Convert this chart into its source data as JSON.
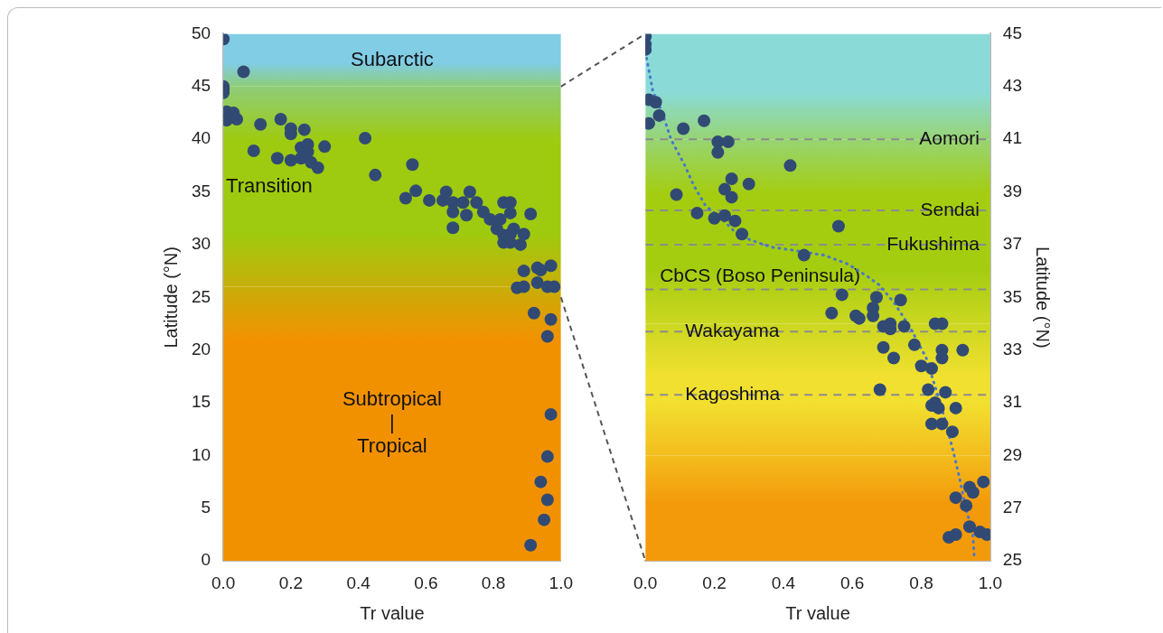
{
  "chart_data": [
    {
      "type": "scatter",
      "xlabel": "Tr value",
      "ylabel": "Latitude (°N)",
      "legend": false,
      "xlim": [
        0,
        1
      ],
      "ylim": [
        0,
        50
      ],
      "xticks": [
        {
          "value": 0,
          "label": "0.0"
        },
        {
          "value": 0.2,
          "label": "0.2"
        },
        {
          "value": 0.4,
          "label": "0.4"
        },
        {
          "value": 0.6,
          "label": "0.6"
        },
        {
          "value": 0.8,
          "label": "0.8"
        },
        {
          "value": 1,
          "label": "1.0"
        }
      ],
      "yticks": [
        0,
        5,
        10,
        15,
        20,
        25,
        30,
        35,
        40,
        45,
        50
      ],
      "bands": [
        {
          "axis": "y",
          "from": 45,
          "to": 50,
          "label": "Subarctic",
          "color": "#80cde5"
        },
        {
          "axis": "y",
          "from": 26,
          "to": 45,
          "label": "Transition",
          "color": "#9ecb0f"
        },
        {
          "axis": "y",
          "from": 0,
          "to": 26,
          "label": "Subtropical\n|\nTropical",
          "color": "#f29100"
        }
      ],
      "series": [
        {
          "color": "#314a74",
          "marker": "circle",
          "x": [
            0,
            0.06,
            0,
            0,
            0,
            0.01,
            0.03,
            0.01,
            0.04,
            0.11,
            0.17,
            0.2,
            0.2,
            0.24,
            0.42,
            0.09,
            0.16,
            0.2,
            0.23,
            0.25,
            0.25,
            0.23,
            0.26,
            0.28,
            0.3,
            0.45,
            0.56,
            0.57,
            0.54,
            0.61,
            0.66,
            0.65,
            0.68,
            0.71,
            0.68,
            0.72,
            0.73,
            0.75,
            0.77,
            0.79,
            0.82,
            0.68,
            0.83,
            0.85,
            0.85,
            0.91,
            0.81,
            0.86,
            0.83,
            0.85,
            0.83,
            0.85,
            0.88,
            0.89,
            0.89,
            0.93,
            0.94,
            0.97,
            0.93,
            0.96,
            0.98,
            0.87,
            0.89,
            0.92,
            0.97,
            0.96,
            0.97,
            0.96,
            0.94,
            0.96,
            0.95,
            0.91
          ],
          "values": [
            49.5,
            46.4,
            45.0,
            44.7,
            44.4,
            42.6,
            42.5,
            41.8,
            41.9,
            41.4,
            41.9,
            41.0,
            40.5,
            40.9,
            40.1,
            38.9,
            38.2,
            38.0,
            39.2,
            39.5,
            38.8,
            38.2,
            37.8,
            37.3,
            39.3,
            36.6,
            37.6,
            35.1,
            34.4,
            34.2,
            35.0,
            34.2,
            34.0,
            34.0,
            33.1,
            32.8,
            35.0,
            34.0,
            33.1,
            32.4,
            32.4,
            31.6,
            34.0,
            34.0,
            33.0,
            32.9,
            31.5,
            31.5,
            30.9,
            31.0,
            30.2,
            30.2,
            30.0,
            31.0,
            27.5,
            27.8,
            27.6,
            28.0,
            26.4,
            26.0,
            26.0,
            25.9,
            26.0,
            23.5,
            22.9,
            21.3,
            13.9,
            9.9,
            7.5,
            5.8,
            3.9,
            1.5
          ]
        }
      ]
    },
    {
      "type": "scatter",
      "xlabel": "Tr value",
      "y2label": "Latitude (°N)",
      "legend": false,
      "xlim": [
        0,
        1
      ],
      "y2lim": [
        25,
        45
      ],
      "xticks": [
        {
          "value": 0,
          "label": "0.0"
        },
        {
          "value": 0.2,
          "label": "0.2"
        },
        {
          "value": 0.4,
          "label": "0.4"
        },
        {
          "value": 0.6,
          "label": "0.6"
        },
        {
          "value": 0.8,
          "label": "0.8"
        },
        {
          "value": 1,
          "label": "1.0"
        }
      ],
      "y2ticks": [
        25,
        27,
        29,
        31,
        33,
        35,
        37,
        39,
        41,
        43,
        45
      ],
      "bands": [
        {
          "axis": "y2",
          "from": 41,
          "to": 45,
          "color": "#8adbd8"
        },
        {
          "axis": "y2",
          "from": 34,
          "to": 41,
          "color": "#a4cd10"
        },
        {
          "axis": "y2",
          "from": 29,
          "to": 34,
          "color": "#f2e030"
        },
        {
          "axis": "y2",
          "from": 25,
          "to": 29,
          "color": "#f39a0a"
        }
      ],
      "ref_lines": [
        {
          "axis": "y2",
          "value": 41.0,
          "label": "Aomori",
          "color": "#8c8c8c",
          "line_style": "dashed"
        },
        {
          "axis": "y2",
          "value": 38.3,
          "label": "Sendai",
          "color": "#8c8c8c",
          "line_style": "dashed"
        },
        {
          "axis": "y2",
          "value": 37.0,
          "label": "Fukushima",
          "color": "#8c8c8c",
          "line_style": "dashed"
        },
        {
          "axis": "y2",
          "value": 35.3,
          "label": "CbCS (Boso Peninsula)",
          "color": "#8c8c8c",
          "line_style": "dashed"
        },
        {
          "axis": "y2",
          "value": 33.7,
          "label": "Wakayama",
          "color": "#8c8c8c",
          "line_style": "dashed"
        },
        {
          "axis": "y2",
          "value": 31.3,
          "label": "Kagoshima",
          "color": "#8c8c8c",
          "line_style": "dashed"
        }
      ],
      "series": [
        {
          "axis": "y2",
          "color": "#314a74",
          "marker": "circle",
          "x": [
            0,
            0,
            0,
            0.01,
            0.03,
            0.04,
            0.01,
            0.11,
            0.17,
            0.21,
            0.24,
            0.21,
            0.42,
            0.25,
            0.3,
            0.23,
            0.25,
            0.09,
            0.15,
            0.2,
            0.23,
            0.26,
            0.28,
            0.56,
            0.46,
            0.57,
            0.54,
            0.61,
            0.62,
            0.67,
            0.66,
            0.66,
            0.74,
            0.69,
            0.71,
            0.71,
            0.75,
            0.84,
            0.86,
            0.69,
            0.72,
            0.78,
            0.86,
            0.86,
            0.92,
            0.8,
            0.83,
            0.68,
            0.82,
            0.87,
            0.83,
            0.84,
            0.85,
            0.9,
            0.83,
            0.86,
            0.89,
            0.98,
            0.94,
            0.95,
            0.9,
            0.93,
            0.94,
            0.97,
            0.99,
            0.88,
            0.9
          ],
          "values": [
            44.9,
            44.6,
            44.4,
            42.5,
            42.4,
            41.9,
            41.6,
            41.4,
            41.7,
            40.9,
            40.9,
            40.5,
            40.0,
            39.5,
            39.3,
            39.1,
            38.8,
            38.9,
            38.2,
            38.0,
            38.1,
            37.9,
            37.4,
            37.7,
            36.6,
            35.1,
            34.4,
            34.3,
            34.2,
            35.0,
            34.6,
            34.3,
            34.9,
            33.9,
            34.0,
            33.8,
            33.9,
            34.0,
            34.0,
            33.1,
            32.7,
            33.2,
            33.0,
            32.7,
            33.0,
            32.4,
            32.3,
            31.5,
            31.5,
            31.4,
            30.9,
            31.0,
            30.8,
            30.8,
            30.2,
            30.2,
            29.9,
            28.0,
            27.8,
            27.6,
            27.4,
            27.1,
            26.3,
            26.1,
            26.0,
            25.9,
            26.0
          ]
        },
        {
          "type": "line",
          "axis": "y2",
          "color": "#4a78c8",
          "marker": "none",
          "line_style": "dotted",
          "x": [
            0,
            0.022,
            0.049,
            0.075,
            0.113,
            0.14,
            0.175,
            0.221,
            0.256,
            0.302,
            0.364,
            0.437,
            0.518,
            0.588,
            0.642,
            0.679,
            0.722,
            0.768,
            0.814,
            0.841,
            0.868,
            0.895,
            0.911,
            0.93,
            0.949,
            0.954
          ],
          "values": [
            44.31,
            42.8,
            42.0,
            40.97,
            40.04,
            39.25,
            38.46,
            37.99,
            37.53,
            37.19,
            36.91,
            36.77,
            36.6,
            36.26,
            35.81,
            35.46,
            34.78,
            33.85,
            32.71,
            31.57,
            30.4,
            29.03,
            28.13,
            26.96,
            26.07,
            25.07
          ]
        }
      ]
    }
  ]
}
